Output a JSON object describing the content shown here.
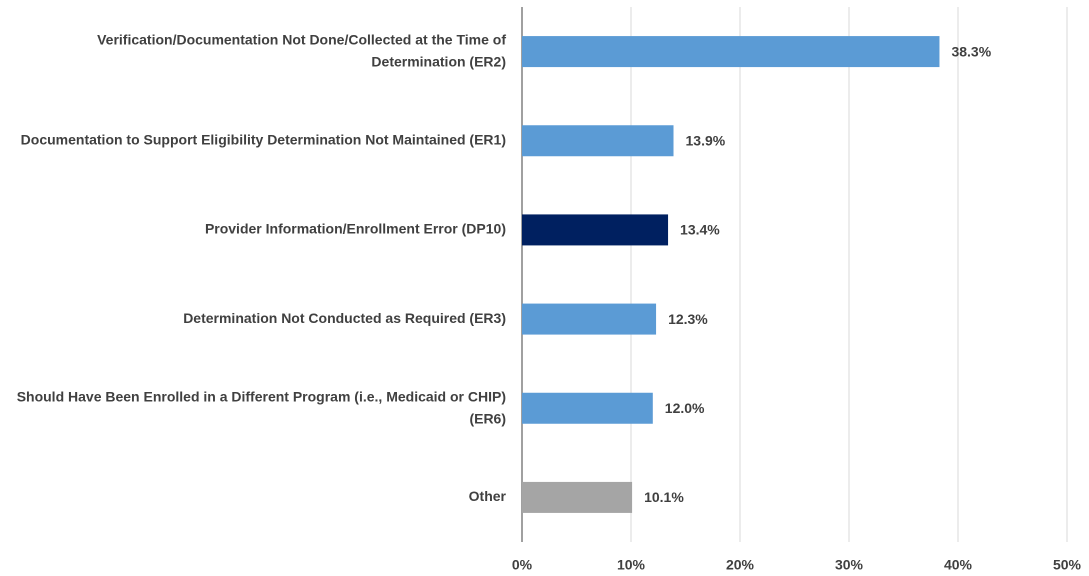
{
  "chart_data": {
    "type": "bar",
    "orientation": "horizontal",
    "categories": [
      "Verification/Documentation Not Done/Collected at the Time of Determination (ER2)",
      "Documentation to Support Eligibility Determination Not Maintained (ER1)",
      "Provider Information/Enrollment Error (DP10)",
      "Determination Not Conducted as Required (ER3)",
      "Should Have Been Enrolled in a Different Program (i.e., Medicaid or CHIP) (ER6)",
      "Other"
    ],
    "values": [
      38.3,
      13.9,
      13.4,
      12.3,
      12.0,
      10.1
    ],
    "value_labels": [
      "38.3%",
      "13.9%",
      "13.4%",
      "12.3%",
      "12.0%",
      "10.1%"
    ],
    "colors": [
      "#5b9bd5",
      "#5b9bd5",
      "#002060",
      "#5b9bd5",
      "#5b9bd5",
      "#a5a5a5"
    ],
    "xlim": [
      0,
      50
    ],
    "xticks": [
      {
        "value": 0,
        "label": "0%"
      },
      {
        "value": 10,
        "label": "10%"
      },
      {
        "value": 20,
        "label": "20%"
      },
      {
        "value": 30,
        "label": "30%"
      },
      {
        "value": 40,
        "label": "40%"
      },
      {
        "value": 50,
        "label": "50%"
      }
    ],
    "grid": true
  }
}
